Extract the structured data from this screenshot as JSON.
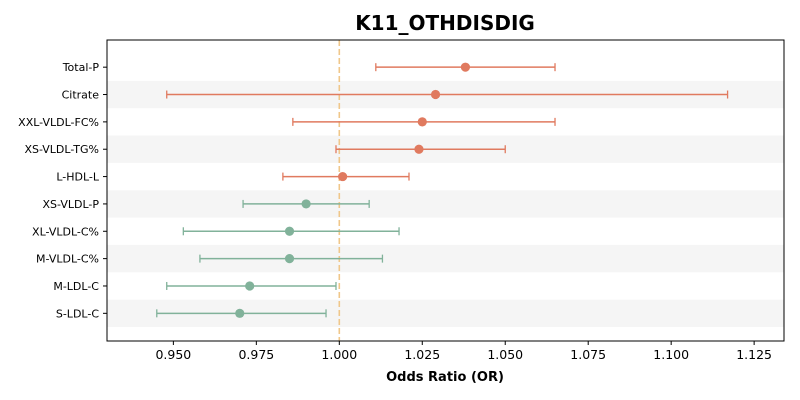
{
  "chart_data": {
    "type": "forest",
    "title": "K11_OTHDISDIG",
    "xlabel": "Odds Ratio (OR)",
    "ylabel": "",
    "xlim": [
      0.93,
      1.134
    ],
    "xticks": [
      0.95,
      0.975,
      1.0,
      1.025,
      1.05,
      1.075,
      1.1,
      1.125
    ],
    "xtick_labels": [
      "0.950",
      "0.975",
      "1.000",
      "1.025",
      "1.050",
      "1.075",
      "1.100",
      "1.125"
    ],
    "reference_line": 1.0,
    "reference_color": "#f0c78a",
    "colors": {
      "positive": "#e07a5f",
      "negative": "#81b29a",
      "band": "#f5f5f5"
    },
    "rows": [
      {
        "label": "Total-P",
        "or": 1.038,
        "lo": 1.011,
        "hi": 1.065,
        "direction": "positive"
      },
      {
        "label": "Citrate",
        "or": 1.029,
        "lo": 0.948,
        "hi": 1.117,
        "direction": "positive"
      },
      {
        "label": "XXL-VLDL-FC%",
        "or": 1.025,
        "lo": 0.986,
        "hi": 1.065,
        "direction": "positive"
      },
      {
        "label": "XS-VLDL-TG%",
        "or": 1.024,
        "lo": 0.999,
        "hi": 1.05,
        "direction": "positive"
      },
      {
        "label": "L-HDL-L",
        "or": 1.001,
        "lo": 0.983,
        "hi": 1.021,
        "direction": "positive"
      },
      {
        "label": "XS-VLDL-P",
        "or": 0.99,
        "lo": 0.971,
        "hi": 1.009,
        "direction": "negative"
      },
      {
        "label": "XL-VLDL-C%",
        "or": 0.985,
        "lo": 0.953,
        "hi": 1.018,
        "direction": "negative"
      },
      {
        "label": "M-VLDL-C%",
        "or": 0.985,
        "lo": 0.958,
        "hi": 1.013,
        "direction": "negative"
      },
      {
        "label": "M-LDL-C",
        "or": 0.973,
        "lo": 0.948,
        "hi": 0.999,
        "direction": "negative"
      },
      {
        "label": "S-LDL-C",
        "or": 0.97,
        "lo": 0.945,
        "hi": 0.996,
        "direction": "negative"
      }
    ]
  }
}
